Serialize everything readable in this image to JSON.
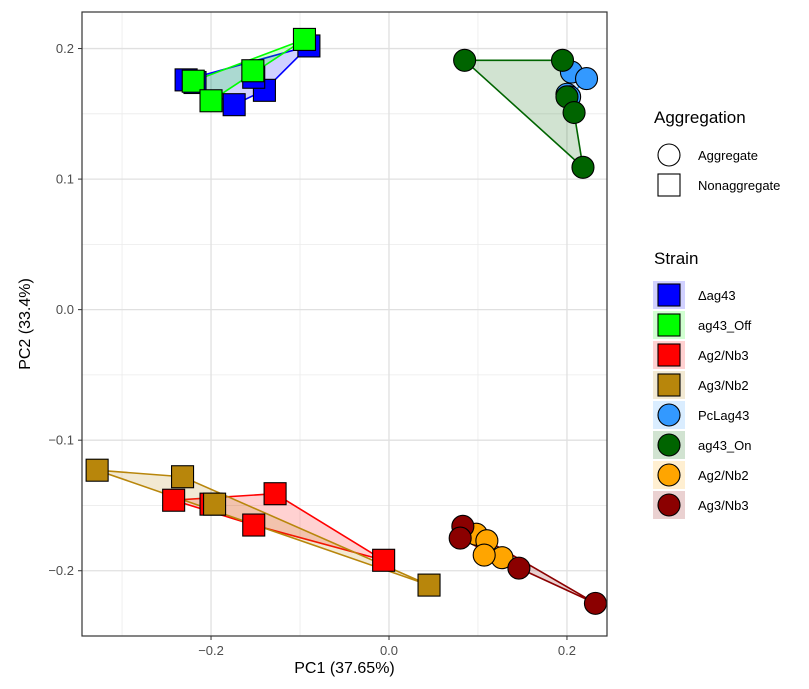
{
  "chart_data": {
    "type": "scatter",
    "xlabel": "PC1 (37.65%)",
    "ylabel": "PC2 (33.4%)",
    "xlim": [
      -0.345,
      0.245
    ],
    "ylim": [
      -0.25,
      0.228
    ],
    "x_ticks": [
      -0.2,
      0.0,
      0.2
    ],
    "x_tick_labels": [
      "−0.2",
      "0.0",
      "0.2"
    ],
    "y_ticks": [
      -0.2,
      -0.1,
      0.0,
      0.1,
      0.2
    ],
    "y_tick_labels": [
      "−0.2",
      "−0.1",
      "0.0",
      "0.1",
      "0.2"
    ],
    "grid": true,
    "hulls": true,
    "legend_position": "right",
    "legends": [
      {
        "title": "Aggregation",
        "items": [
          {
            "label": "Aggregate",
            "shape": "circle"
          },
          {
            "label": "Nonaggregate",
            "shape": "square"
          }
        ]
      }
    ],
    "strain_legend_title": "Strain",
    "series": [
      {
        "name": "Δag43",
        "shape": "square",
        "color": "#0000ff",
        "points": [
          [
            -0.228,
            0.176
          ],
          [
            -0.218,
            0.174
          ],
          [
            -0.174,
            0.157
          ],
          [
            -0.14,
            0.168
          ],
          [
            -0.152,
            0.178
          ],
          [
            -0.09,
            0.202
          ]
        ]
      },
      {
        "name": "ag43_Off",
        "shape": "square",
        "color": "#00ff00",
        "points": [
          [
            -0.22,
            0.175
          ],
          [
            -0.2,
            0.16
          ],
          [
            -0.153,
            0.183
          ],
          [
            -0.095,
            0.207
          ]
        ]
      },
      {
        "name": "Ag2/Nb3",
        "shape": "square",
        "color": "#ff0000",
        "points": [
          [
            -0.242,
            -0.146
          ],
          [
            -0.128,
            -0.141
          ],
          [
            -0.152,
            -0.165
          ],
          [
            -0.006,
            -0.192
          ],
          [
            -0.2,
            -0.149
          ]
        ]
      },
      {
        "name": "Ag3/Nb2",
        "shape": "square",
        "color": "#b8860b",
        "points": [
          [
            -0.328,
            -0.123
          ],
          [
            -0.232,
            -0.128
          ],
          [
            -0.196,
            -0.149
          ],
          [
            0.045,
            -0.211
          ]
        ]
      },
      {
        "name": "PcLag43",
        "shape": "circle",
        "color": "#3399ff",
        "points": [
          [
            0.205,
            0.182
          ],
          [
            0.222,
            0.177
          ],
          [
            0.2,
            0.165
          ],
          [
            0.203,
            0.163
          ]
        ]
      },
      {
        "name": "ag43_On",
        "shape": "circle",
        "color": "#006400",
        "points": [
          [
            0.085,
            0.191
          ],
          [
            0.195,
            0.191
          ],
          [
            0.2,
            0.163
          ],
          [
            0.208,
            0.151
          ],
          [
            0.218,
            0.109
          ]
        ]
      },
      {
        "name": "Ag2/Nb2",
        "shape": "circle",
        "color": "#ffa500",
        "points": [
          [
            0.098,
            -0.172
          ],
          [
            0.11,
            -0.177
          ],
          [
            0.127,
            -0.19
          ],
          [
            0.107,
            -0.188
          ]
        ]
      },
      {
        "name": "Ag3/Nb3",
        "shape": "circle",
        "color": "#8b0000",
        "points": [
          [
            0.083,
            -0.166
          ],
          [
            0.08,
            -0.175
          ],
          [
            0.146,
            -0.198
          ],
          [
            0.232,
            -0.225
          ]
        ]
      }
    ]
  }
}
